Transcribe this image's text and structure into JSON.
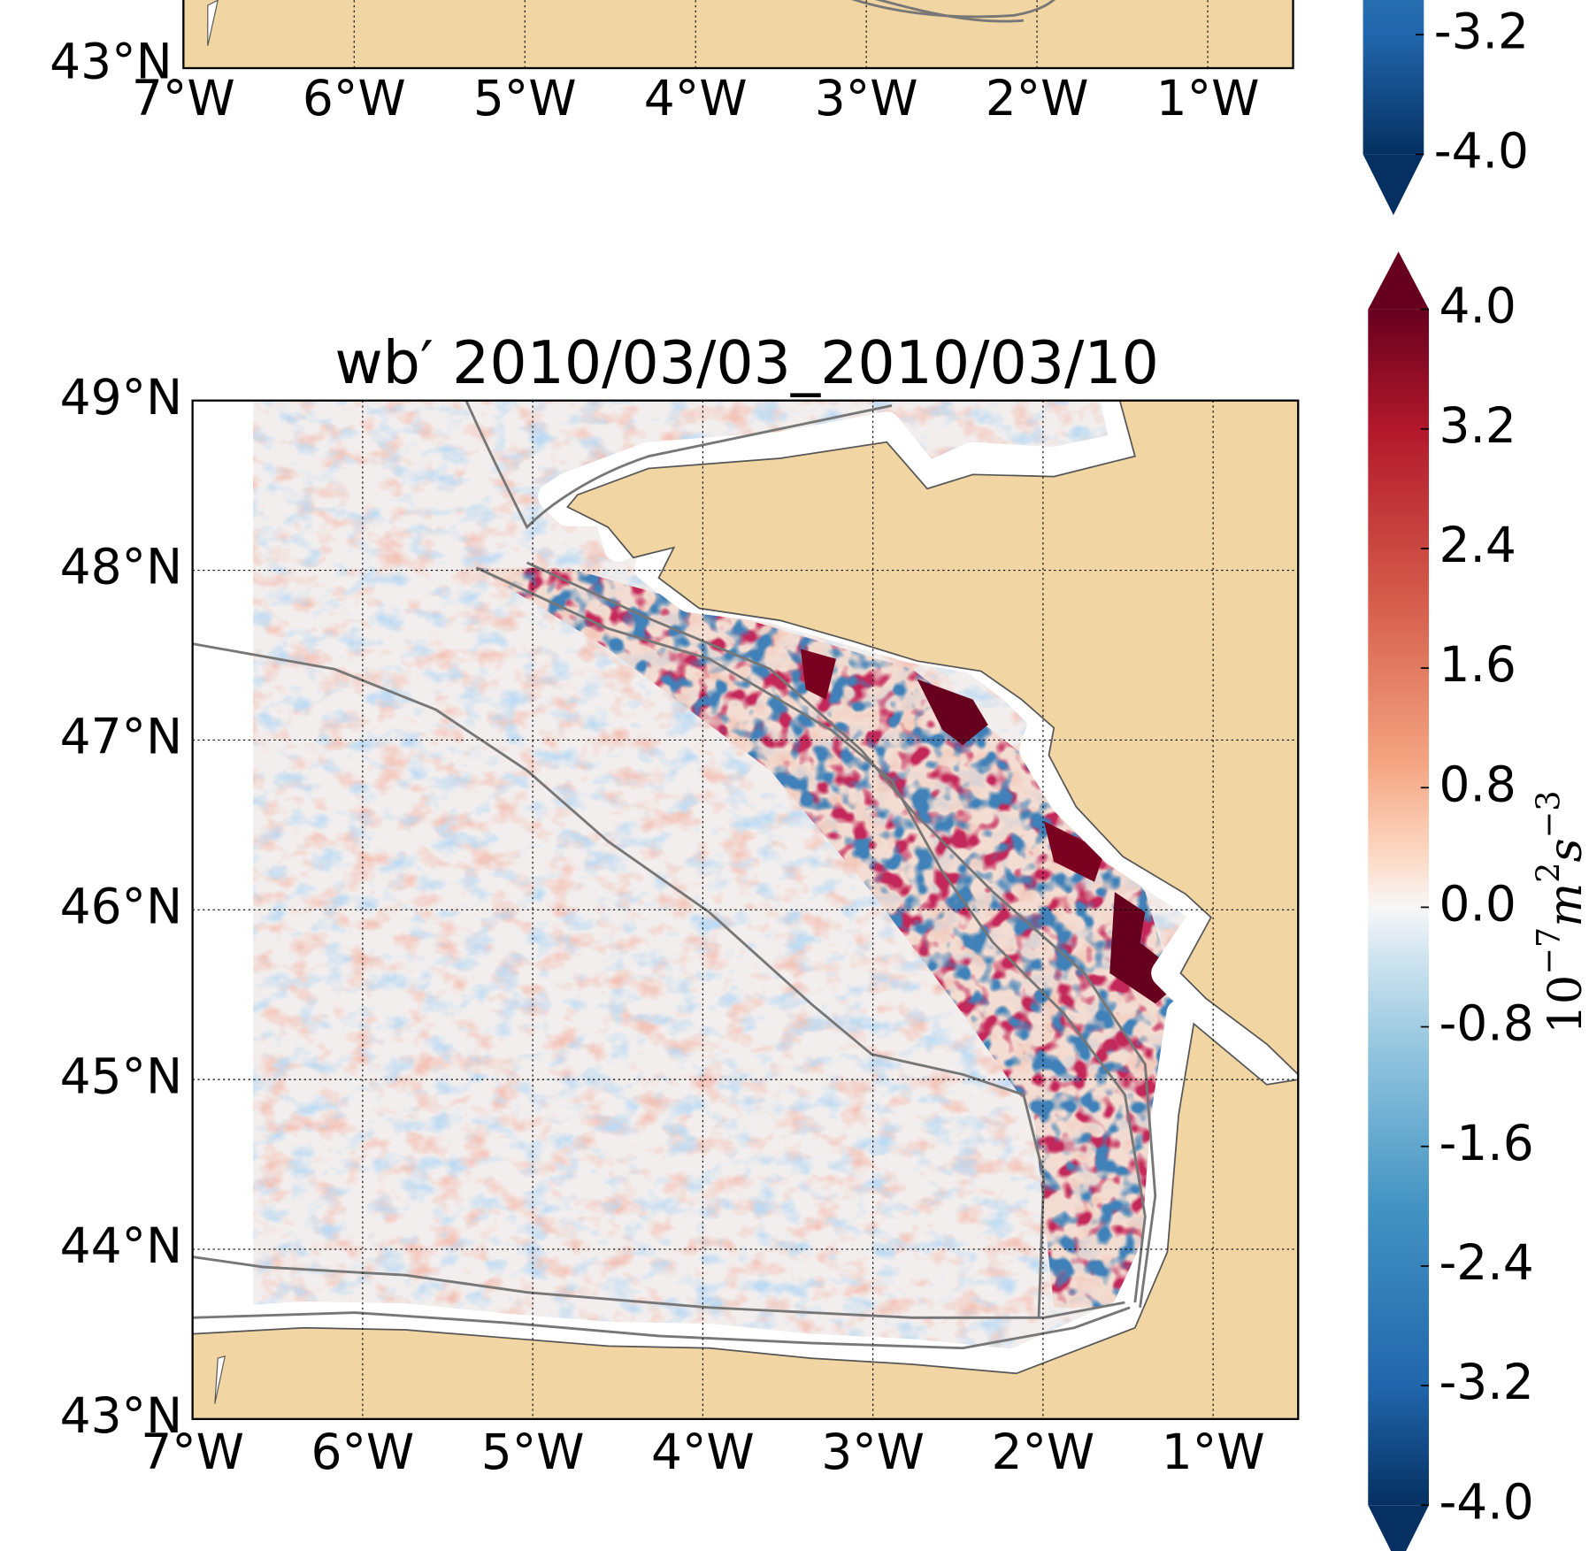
{
  "top_panel": {
    "lon_range": [
      -7,
      -0.5
    ],
    "lat_ticks": [
      {
        "value": 43,
        "label": "43°N"
      }
    ],
    "lon_ticks": [
      {
        "value": -7,
        "label": "7°W"
      },
      {
        "value": -6,
        "label": "6°W"
      },
      {
        "value": -5,
        "label": "5°W"
      },
      {
        "value": -4,
        "label": "4°W"
      },
      {
        "value": -3,
        "label": "3°W"
      },
      {
        "value": -2,
        "label": "2°W"
      },
      {
        "value": -1,
        "label": "1°W"
      }
    ],
    "colorbar_range": [
      -4,
      4
    ],
    "colorbar_ticks": [
      {
        "value": -3.2,
        "label": "-3.2"
      },
      {
        "value": -4,
        "label": "-4.0"
      }
    ]
  },
  "main_panel": {
    "title": "wb′ 2010/03/03_2010/03/10",
    "lon_range": [
      -7,
      -0.5
    ],
    "lat_range": [
      43,
      49
    ],
    "lat_ticks": [
      {
        "value": 49,
        "label": "49°N"
      },
      {
        "value": 48,
        "label": "48°N"
      },
      {
        "value": 47,
        "label": "47°N"
      },
      {
        "value": 46,
        "label": "46°N"
      },
      {
        "value": 45,
        "label": "45°N"
      },
      {
        "value": 44,
        "label": "44°N"
      },
      {
        "value": 43,
        "label": "43°N"
      }
    ],
    "lon_ticks": [
      {
        "value": -7,
        "label": "7°W"
      },
      {
        "value": -6,
        "label": "6°W"
      },
      {
        "value": -5,
        "label": "5°W"
      },
      {
        "value": -4,
        "label": "4°W"
      },
      {
        "value": -3,
        "label": "3°W"
      },
      {
        "value": -2,
        "label": "2°W"
      },
      {
        "value": -1,
        "label": "1°W"
      }
    ],
    "colorbar_range": [
      -4,
      4
    ],
    "colorbar_ticks": [
      {
        "value": 4,
        "label": "4.0"
      },
      {
        "value": 3.2,
        "label": "3.2"
      },
      {
        "value": 2.4,
        "label": "2.4"
      },
      {
        "value": 1.6,
        "label": "1.6"
      },
      {
        "value": 0.8,
        "label": "0.8"
      },
      {
        "value": 0,
        "label": "0.0"
      },
      {
        "value": -0.8,
        "label": "-0.8"
      },
      {
        "value": -1.6,
        "label": "-1.6"
      },
      {
        "value": -2.4,
        "label": "-2.4"
      },
      {
        "value": -3.2,
        "label": "-3.2"
      },
      {
        "value": -4,
        "label": "-4.0"
      }
    ],
    "colorbar_label": {
      "base": "10",
      "base_exp": "−7",
      "unit1": "m",
      "unit1_exp": "2",
      "unit2": "s",
      "unit2_exp": "−3"
    }
  }
}
